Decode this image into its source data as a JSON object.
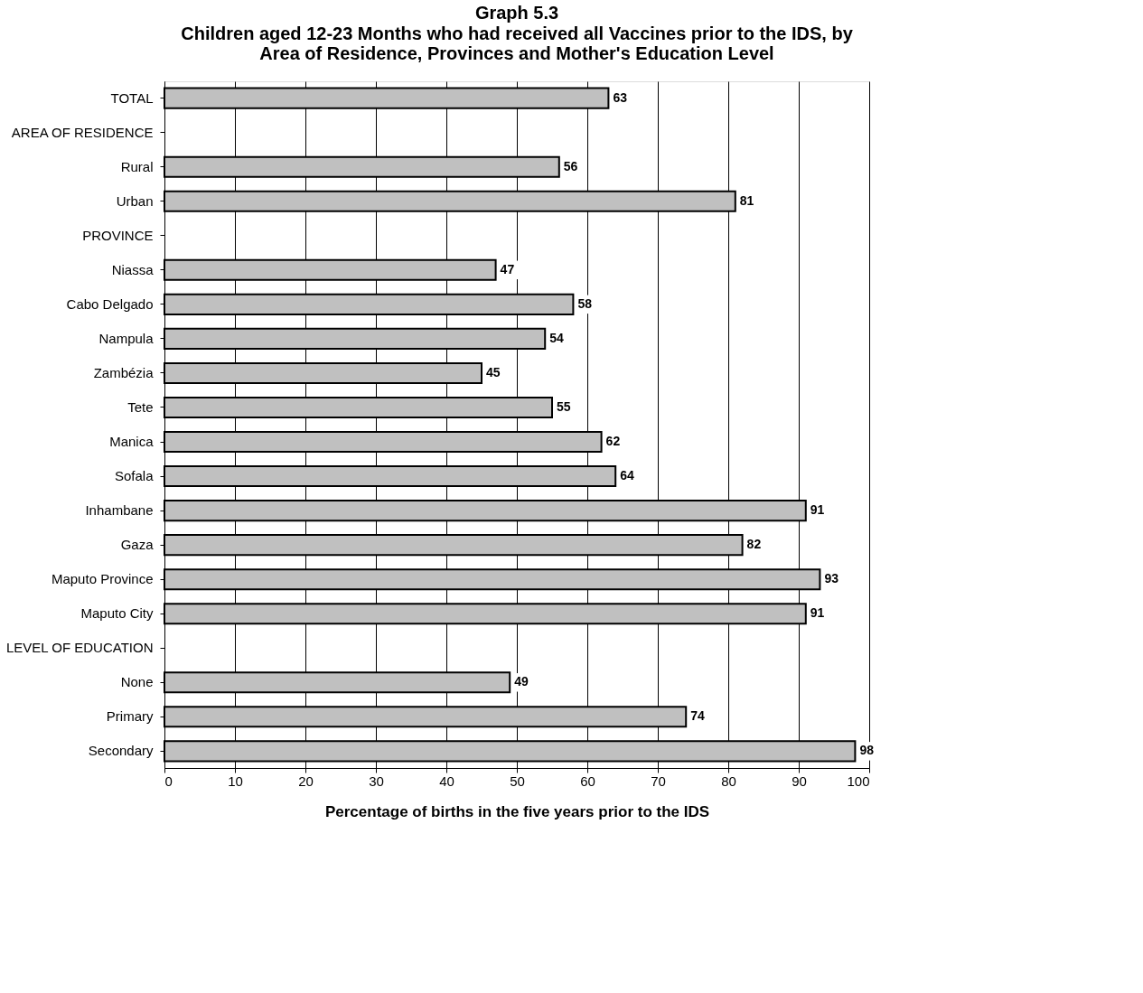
{
  "chart_data": {
    "type": "bar",
    "orientation": "horizontal",
    "title": "Graph 5.3",
    "subtitle": "Children aged 12-23 Months who had received all Vaccines prior to the IDS, by Area of Residence, Provinces and Mother's Education Level",
    "xlabel": "Percentage of births in the five years prior to the IDS",
    "categories": [
      "TOTAL",
      "AREA OF RESIDENCE",
      "Rural",
      "Urban",
      "PROVINCE",
      "Niassa",
      "Cabo Delgado",
      "Nampula",
      "Zambézia",
      "Tete",
      "Manica",
      "Sofala",
      "Inhambane",
      "Gaza",
      "Maputo Province",
      "Maputo City",
      "LEVEL OF EDUCATION",
      "None",
      "Primary",
      "Secondary"
    ],
    "values": [
      63,
      null,
      56,
      81,
      null,
      47,
      58,
      54,
      45,
      55,
      62,
      64,
      91,
      82,
      93,
      91,
      null,
      49,
      74,
      98
    ],
    "color": "#c0c0c0",
    "xlim": [
      0,
      100
    ],
    "xticks": [
      0,
      10,
      20,
      30,
      40,
      50,
      60,
      70,
      80,
      90,
      100
    ],
    "grid": "x",
    "data_labels": true
  }
}
